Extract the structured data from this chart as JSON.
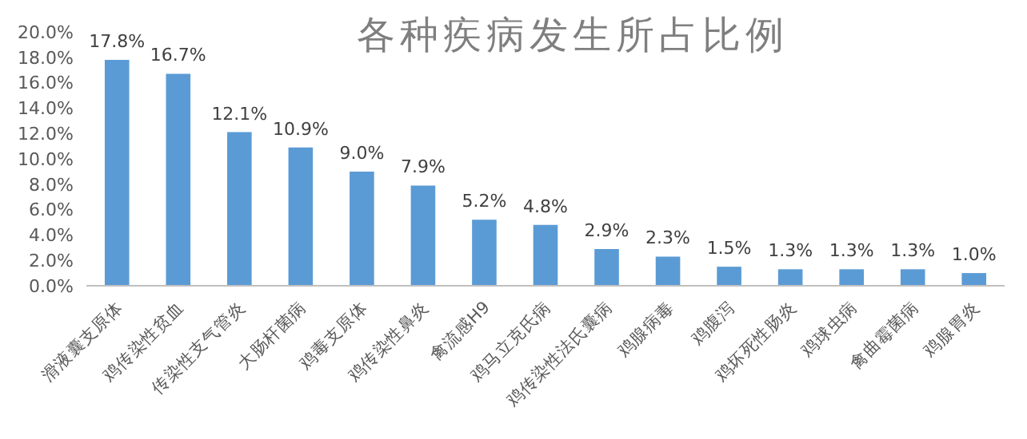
{
  "chart_data": {
    "type": "bar",
    "title": "各种疾病发生所占比例",
    "categories": [
      "滑液囊支原体",
      "鸡传染性贫血",
      "传染性支气管炎",
      "大肠杆菌病",
      "鸡毒支原体",
      "鸡传染性鼻炎",
      "禽流感H9",
      "鸡马立克氏病",
      "鸡传染性法氏囊病",
      "鸡腺病毒",
      "鸡腹泻",
      "鸡坏死性肠炎",
      "鸡球虫病",
      "禽曲霉菌病",
      "鸡腺胃炎"
    ],
    "values": [
      17.8,
      16.7,
      12.1,
      10.9,
      9.0,
      7.9,
      5.2,
      4.8,
      2.9,
      2.3,
      1.5,
      1.3,
      1.3,
      1.3,
      1.0
    ],
    "value_labels": [
      "17.8%",
      "16.7%",
      "12.1%",
      "10.9%",
      "9.0%",
      "7.9%",
      "5.2%",
      "4.8%",
      "2.9%",
      "2.3%",
      "1.5%",
      "1.3%",
      "1.3%",
      "1.3%",
      "1.0%"
    ],
    "color": "#5b9bd5",
    "ylim": [
      0,
      20
    ],
    "yticks": [
      {
        "value": 0,
        "label": "0.0%"
      },
      {
        "value": 2,
        "label": "2.0%"
      },
      {
        "value": 4,
        "label": "4.0%"
      },
      {
        "value": 6,
        "label": "6.0%"
      },
      {
        "value": 8,
        "label": "8.0%"
      },
      {
        "value": 10,
        "label": "10.0%"
      },
      {
        "value": 12,
        "label": "12.0%"
      },
      {
        "value": 14,
        "label": "14.0%"
      },
      {
        "value": 16,
        "label": "16.0%"
      },
      {
        "value": 18,
        "label": "18.0%"
      },
      {
        "value": 20,
        "label": "20.0%"
      }
    ],
    "grid": false,
    "legend": false
  }
}
